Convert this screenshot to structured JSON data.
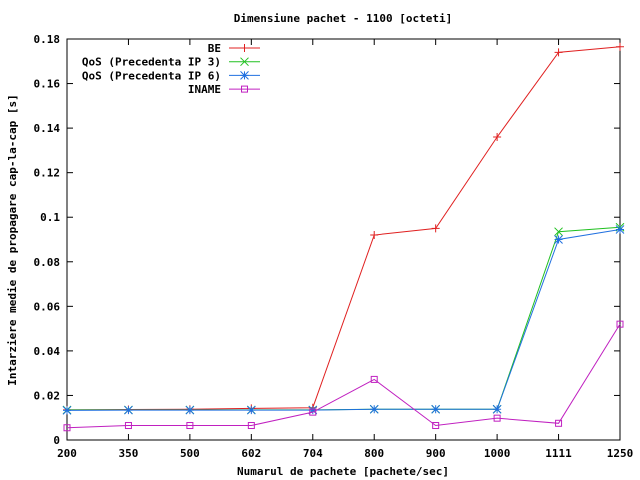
{
  "chart_data": {
    "type": "line",
    "title": "Dimensiune pachet - 1100 [octeti]",
    "xlabel": "Numarul de pachete [pachete/sec]",
    "ylabel": "Intarziere medie de propagare cap-la-cap [s]",
    "x": [
      "200",
      "350",
      "500",
      "602",
      "704",
      "800",
      "900",
      "1000",
      "1111",
      "1250"
    ],
    "ylim": [
      0,
      0.18
    ],
    "yticks": [
      "0",
      "0.02",
      "0.04",
      "0.06",
      "0.08",
      "0.1",
      "0.12",
      "0.14",
      "0.16",
      "0.18"
    ],
    "grid": false,
    "legend_position": "top-left",
    "series": [
      {
        "name": "BE",
        "color": "#e02020",
        "marker": "plus",
        "values": [
          0.0135,
          0.0137,
          0.0138,
          0.0142,
          0.0145,
          0.092,
          0.095,
          0.136,
          0.174,
          0.1765
        ]
      },
      {
        "name": "QoS (Precedenta IP 3)",
        "color": "#20c020",
        "marker": "cross",
        "values": [
          0.0135,
          0.0135,
          0.0135,
          0.0135,
          0.0135,
          0.0138,
          0.0138,
          0.0138,
          0.0935,
          0.0955
        ]
      },
      {
        "name": "QoS (Precedenta IP 6)",
        "color": "#2070e0",
        "marker": "star",
        "values": [
          0.0133,
          0.0134,
          0.0134,
          0.0134,
          0.0134,
          0.0138,
          0.0138,
          0.0138,
          0.09,
          0.0945
        ]
      },
      {
        "name": "INAME",
        "color": "#c020c0",
        "marker": "square",
        "values": [
          0.0055,
          0.0065,
          0.0065,
          0.0065,
          0.0125,
          0.0272,
          0.0065,
          0.0098,
          0.0075,
          0.052
        ]
      }
    ]
  }
}
